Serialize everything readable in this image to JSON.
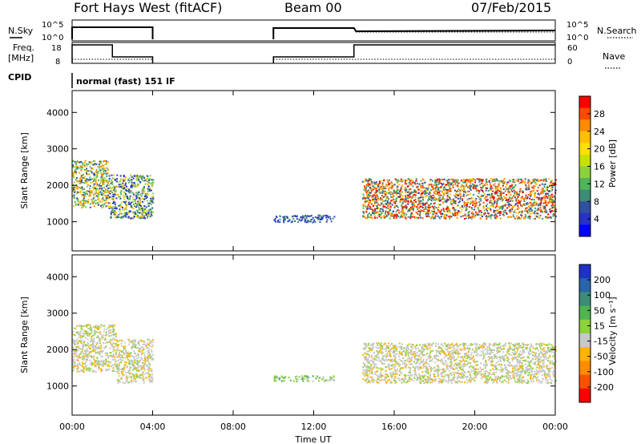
{
  "header": {
    "station": "Fort Hays West (fitACF)",
    "beam": "Beam 00",
    "date": "07/Feb/2015"
  },
  "time_axis": {
    "label": "Time UT",
    "ticks": [
      "00:00",
      "04:00",
      "08:00",
      "12:00",
      "16:00",
      "20:00",
      "00:00"
    ],
    "range_hours": [
      0,
      24
    ]
  },
  "status_panels": {
    "nsky_label": "N.Sky",
    "nsearch_label": "N.Search",
    "nsky_ticks": [
      "10^5",
      "10^0"
    ],
    "nsearch_ticks": [
      "10^5",
      "10^0"
    ],
    "freq_label_1": "Freq.",
    "freq_label_2": "[MHz]",
    "freq_ticks": [
      "18",
      "8"
    ],
    "nave_label": "Nave",
    "nave_ticks": [
      "60",
      "0"
    ],
    "cpid_label": "CPID",
    "cpid_value": "normal (fast) 151 IF"
  },
  "power_colorbar": {
    "title": "Power [dB]",
    "ticks": [
      "28",
      "24",
      "20",
      "16",
      "12",
      "8",
      "4"
    ],
    "colors": [
      "#ff0000",
      "#ff4a00",
      "#ff8c00",
      "#ffc000",
      "#ffe000",
      "#c8e000",
      "#8cd23c",
      "#50b45a",
      "#3c8c78",
      "#3250a0",
      "#2832c8",
      "#0000ff"
    ]
  },
  "velocity_colorbar": {
    "title": "Velocity [m s⁻¹]",
    "ticks": [
      "200",
      "100",
      "50",
      "15",
      "-15",
      "-50",
      "-100",
      "-200"
    ],
    "colors": [
      "#1e32c8",
      "#2864aa",
      "#3c8c78",
      "#50b450",
      "#8cd23c",
      "#c8c8c8",
      "#ffb400",
      "#ff8c00",
      "#ff5000",
      "#ff0000"
    ]
  },
  "chart_data": [
    {
      "type": "heatmap",
      "panel": "power",
      "ylabel": "Slant Range [km]",
      "y_ticks": [
        "1000",
        "2000",
        "3000",
        "4000"
      ],
      "ylim": [
        200,
        4600
      ],
      "xlim": [
        0,
        24
      ],
      "colorbar_label": "Power [dB]",
      "scatter_bands": [
        {
          "start_hr": 0.0,
          "end_hr": 1.8,
          "range_lo_km": 1400,
          "range_hi_km": 2700,
          "dominant": "green-orange"
        },
        {
          "start_hr": 1.8,
          "end_hr": 4.0,
          "range_lo_km": 1100,
          "range_hi_km": 2300,
          "dominant": "blue-green"
        },
        {
          "start_hr": 10.0,
          "end_hr": 13.0,
          "range_lo_km": 1000,
          "range_hi_km": 1200,
          "dominant": "blue"
        },
        {
          "start_hr": 14.4,
          "end_hr": 24.0,
          "range_lo_km": 1100,
          "range_hi_km": 2200,
          "dominant": "red-orange-green"
        }
      ]
    },
    {
      "type": "heatmap",
      "panel": "velocity",
      "ylabel": "Slant Range [km]",
      "y_ticks": [
        "1000",
        "2000",
        "3000",
        "4000"
      ],
      "ylim": [
        200,
        4600
      ],
      "xlim": [
        0,
        24
      ],
      "colorbar_label": "Velocity [m s⁻¹]",
      "scatter_bands": [
        {
          "start_hr": 0.0,
          "end_hr": 2.2,
          "range_lo_km": 1400,
          "range_hi_km": 2700,
          "dominant": "grey"
        },
        {
          "start_hr": 2.2,
          "end_hr": 4.0,
          "range_lo_km": 1100,
          "range_hi_km": 2300,
          "dominant": "grey"
        },
        {
          "start_hr": 10.0,
          "end_hr": 13.0,
          "range_lo_km": 1150,
          "range_hi_km": 1300,
          "dominant": "green"
        },
        {
          "start_hr": 14.4,
          "end_hr": 24.0,
          "range_lo_km": 1100,
          "range_hi_km": 2200,
          "dominant": "grey"
        }
      ]
    }
  ]
}
